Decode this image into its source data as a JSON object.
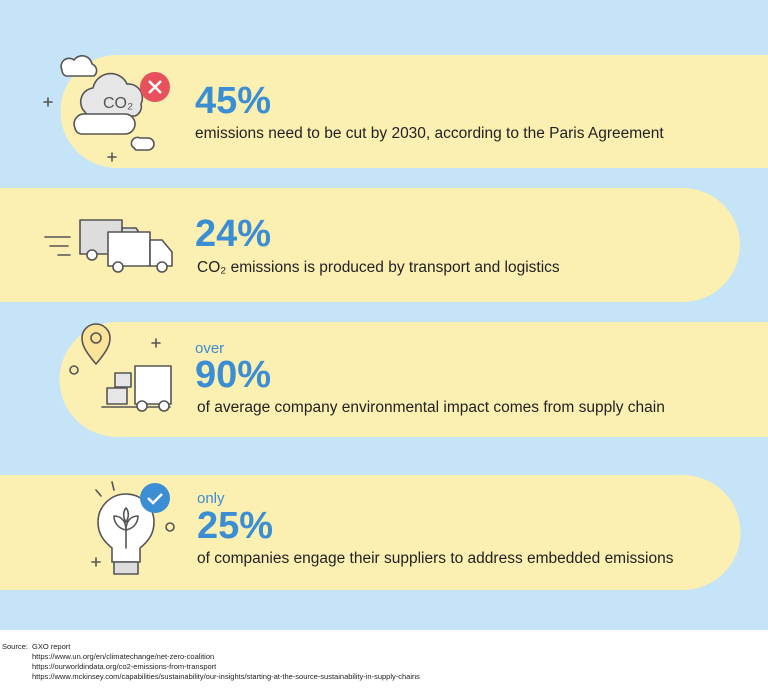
{
  "icon_label": "CO₂",
  "items": [
    {
      "stat": "45%",
      "text": "emissions need to be cut by 2030, according to the Paris Agreement"
    },
    {
      "stat": "24%",
      "text": "CO₂ emissions is produced by transport and logistics"
    },
    {
      "prefix": "over",
      "stat": "90%",
      "text": "of average company environmental impact comes from supply chain"
    },
    {
      "prefix": "only",
      "stat": "25%",
      "text": "of companies engage their suppliers to address embedded emissions"
    }
  ],
  "sources": {
    "label": "Source:",
    "lines": [
      "GXO report",
      "https://www.un.org/en/climatechange/net-zero-coalition",
      "https://ourworldindata.org/co2-emissions-from-transport",
      "https://www.mckinsey.com/capabilities/sustainability/our-insights/starting-at-the-source-sustainability-in-supply-chains"
    ]
  }
}
